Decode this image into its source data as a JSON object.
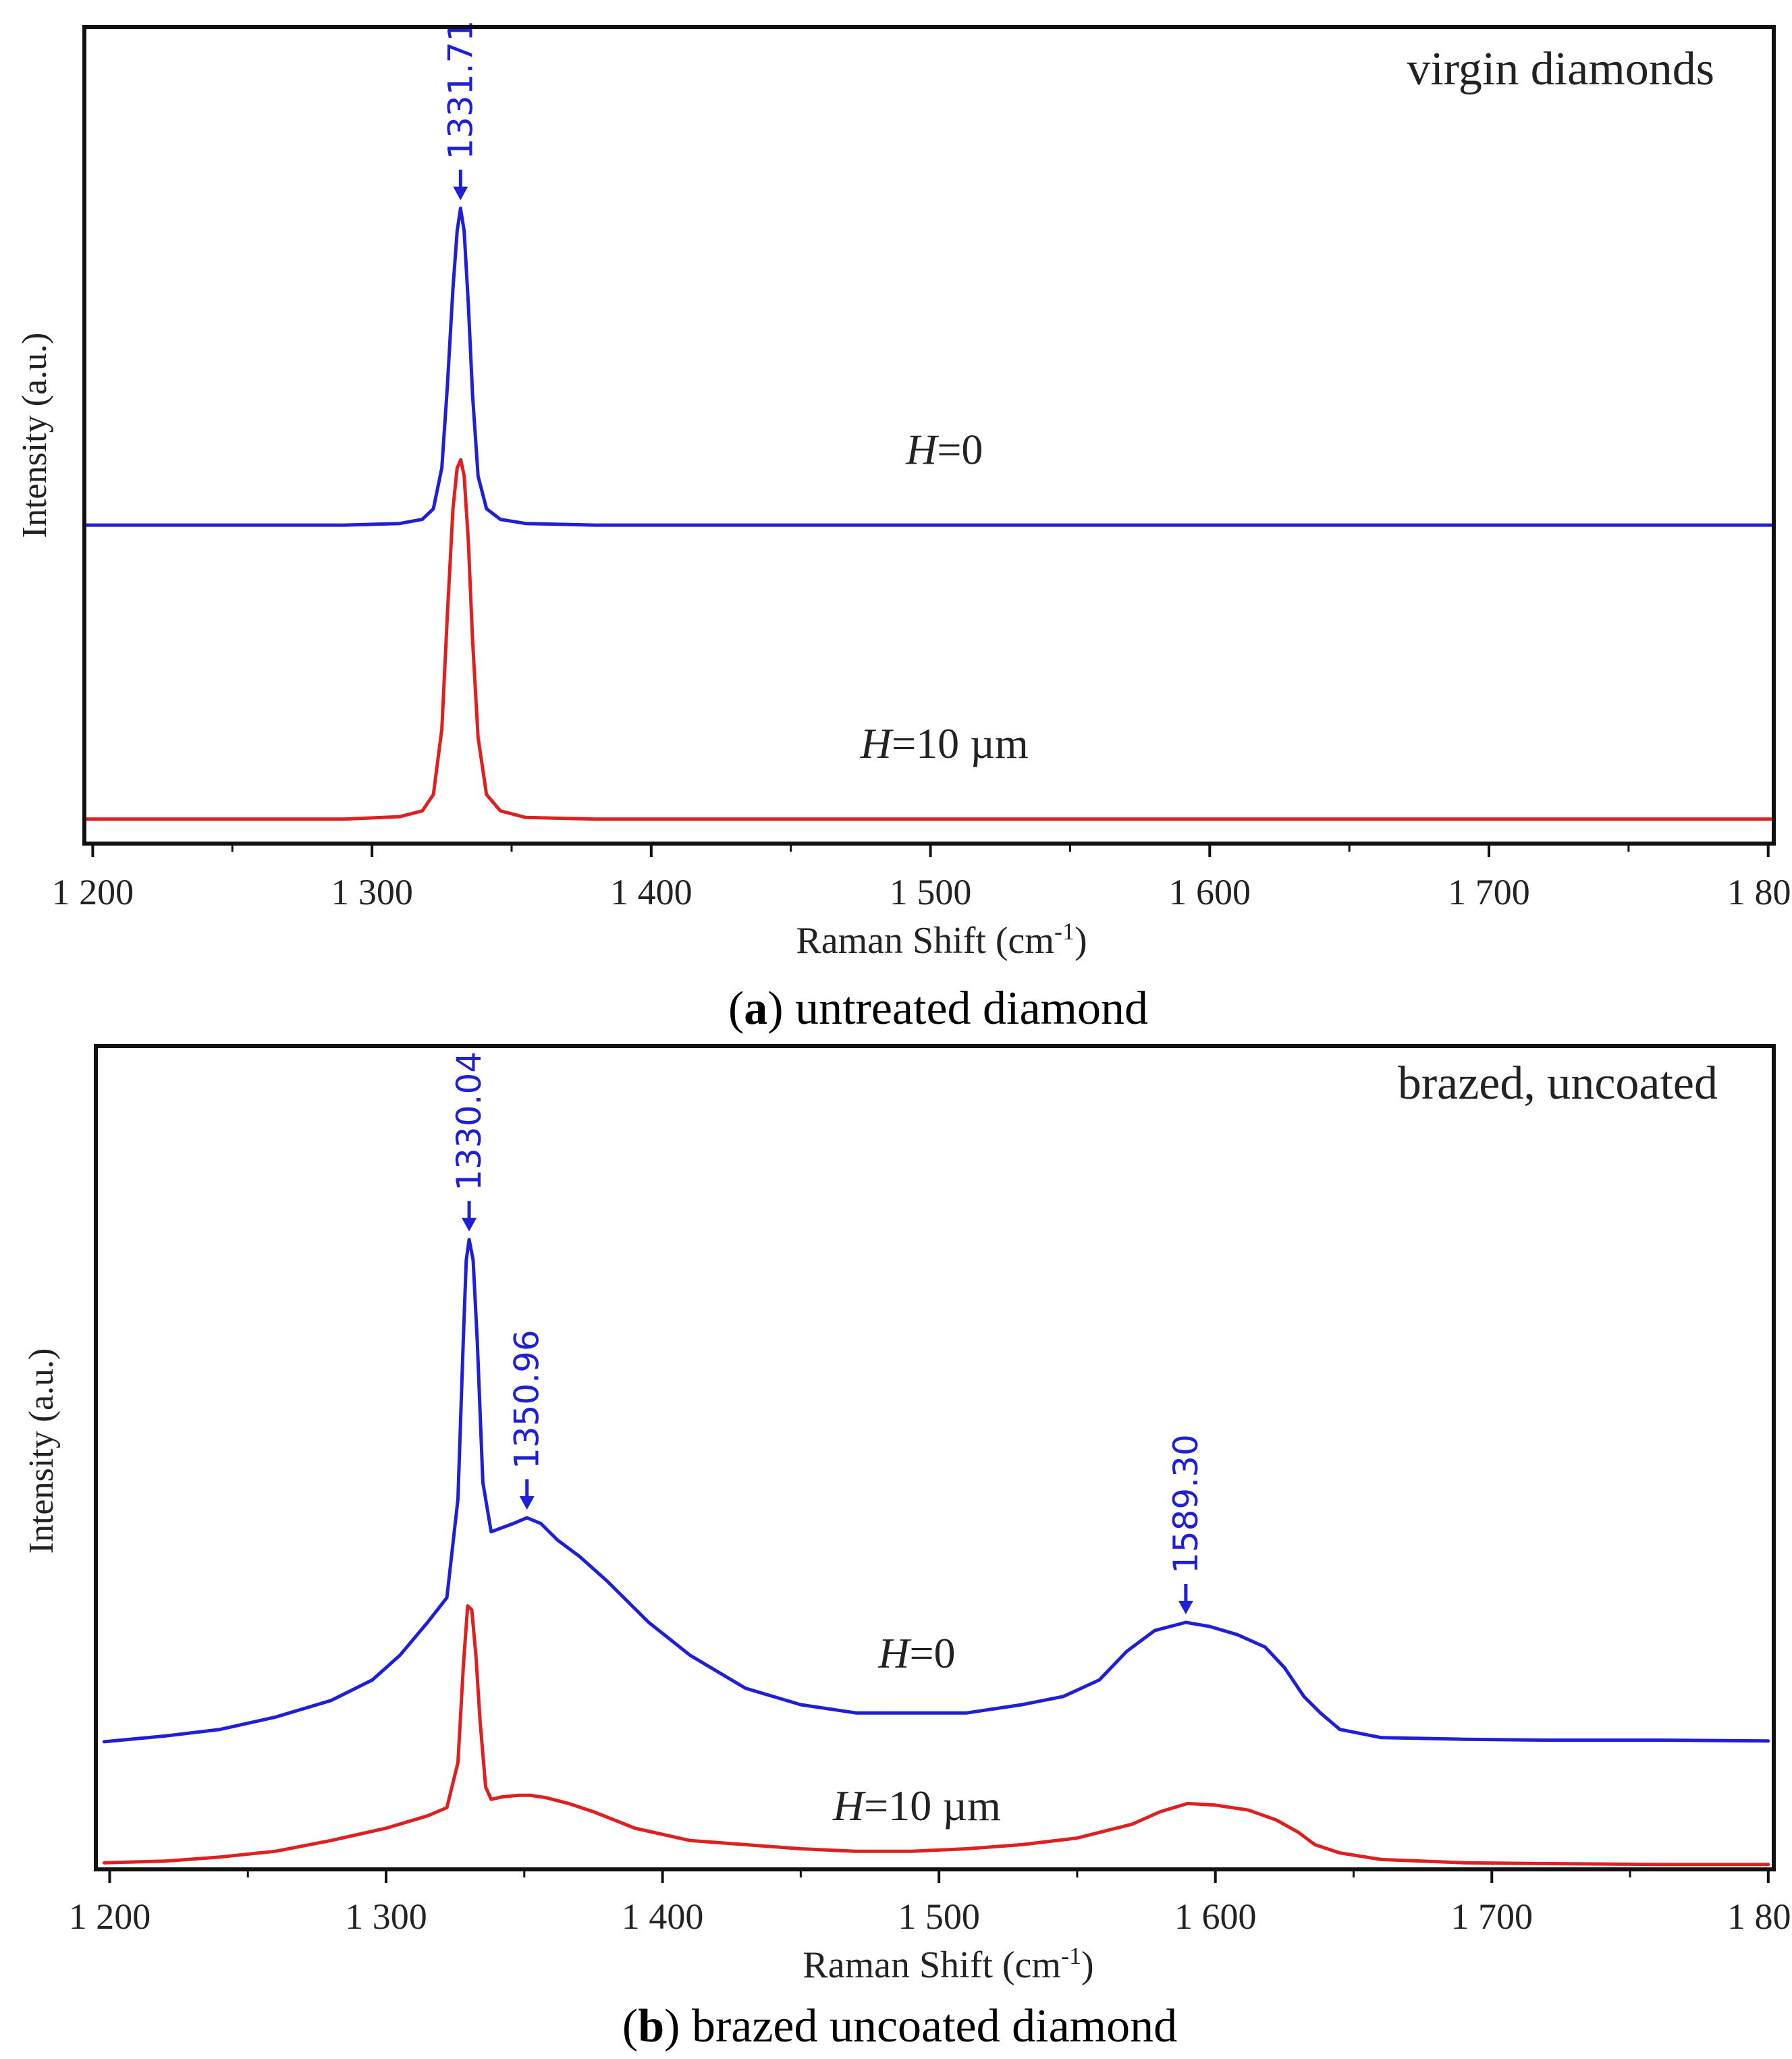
{
  "panels": [
    {
      "id": "a",
      "caption_letter": "a",
      "caption_text": "untreated diamond",
      "chart_data": {
        "type": "line",
        "title": "virgin diamonds",
        "xlabel": "Raman Shift (cm-1)",
        "xlabel_main": "Raman Shift (cm",
        "xlabel_sup": "-1",
        "xlabel_close": ")",
        "ylabel": "Intensity (a.u.)",
        "xlim": [
          1197,
          1802
        ],
        "ylim": [
          0,
          1
        ],
        "grid": false,
        "x_ticks": [
          1200,
          1300,
          1400,
          1500,
          1600,
          1700,
          1800
        ],
        "x_tick_labels": [
          "1 200",
          "1 300",
          "1 400",
          "1 500",
          "1 600",
          "1 700",
          "1 800"
        ],
        "series": [
          {
            "name": "H=0",
            "label_italic": "H",
            "label_rest": "=0",
            "label_x": 1505,
            "label_y": 0.465,
            "color": "#1f1fd6",
            "x": [
              1197,
              1290,
              1310,
              1318,
              1322,
              1325,
              1327,
              1329,
              1330.5,
              1331.71,
              1333,
              1334.5,
              1336,
              1338,
              1341,
              1346,
              1355,
              1380,
              1802
            ],
            "y": [
              0.39,
              0.39,
              0.392,
              0.397,
              0.41,
              0.46,
              0.56,
              0.68,
              0.75,
              0.778,
              0.75,
              0.66,
              0.55,
              0.45,
              0.41,
              0.397,
              0.392,
              0.39,
              0.39
            ]
          },
          {
            "name": "H=10 µm",
            "label_italic": "H",
            "label_rest": "=10 µm",
            "label_x": 1505,
            "label_y": 0.105,
            "color": "#e02020",
            "x": [
              1197,
              1290,
              1310,
              1318,
              1322,
              1325,
              1327,
              1329,
              1330.5,
              1331.8,
              1333,
              1334.5,
              1336,
              1338,
              1341,
              1346,
              1355,
              1380,
              1802
            ],
            "y": [
              0.03,
              0.03,
              0.033,
              0.04,
              0.06,
              0.14,
              0.28,
              0.41,
              0.46,
              0.47,
              0.45,
              0.37,
              0.25,
              0.13,
              0.06,
              0.04,
              0.032,
              0.03,
              0.03
            ]
          }
        ],
        "annotations": [
          {
            "text": "1331.71",
            "x": 1331.71,
            "y": 0.778,
            "color": "#1f1fd6"
          }
        ]
      }
    },
    {
      "id": "b",
      "caption_letter": "b",
      "caption_text": "brazed uncoated diamond",
      "chart_data": {
        "type": "line",
        "title": "brazed, uncoated",
        "xlabel": "Raman Shift (cm-1)",
        "xlabel_main": "Raman Shift (cm",
        "xlabel_sup": "-1",
        "xlabel_close": ")",
        "ylabel": "Intensity (a.u.)",
        "xlim": [
          1195,
          1802
        ],
        "ylim": [
          0,
          1
        ],
        "grid": false,
        "x_ticks": [
          1200,
          1300,
          1400,
          1500,
          1600,
          1700,
          1800
        ],
        "x_tick_labels": [
          "1 200",
          "1 300",
          "1 400",
          "1 500",
          "1 600",
          "1 700",
          "1 800"
        ],
        "series": [
          {
            "name": "H=0",
            "label_italic": "H",
            "label_rest": "=0",
            "label_x": 1492,
            "label_y": 0.245,
            "color": "#1f1fd6",
            "x": [
              1198,
              1220,
              1240,
              1260,
              1280,
              1295,
              1305,
              1315,
              1322,
              1326,
              1328,
              1329,
              1330.04,
              1331.5,
              1333,
              1335,
              1338,
              1342,
              1346,
              1350.96,
              1356,
              1362,
              1370,
              1380,
              1395,
              1410,
              1430,
              1450,
              1470,
              1490,
              1510,
              1530,
              1545,
              1558,
              1568,
              1578,
              1589.3,
              1598,
              1608,
              1618,
              1625,
              1632,
              1638,
              1645,
              1660,
              1690,
              1720,
              1760,
              1800
            ],
            "y": [
              0.155,
              0.162,
              0.17,
              0.185,
              0.205,
              0.23,
              0.26,
              0.3,
              0.33,
              0.45,
              0.65,
              0.74,
              0.765,
              0.74,
              0.64,
              0.47,
              0.41,
              0.415,
              0.42,
              0.427,
              0.42,
              0.4,
              0.38,
              0.35,
              0.3,
              0.26,
              0.22,
              0.2,
              0.19,
              0.19,
              0.19,
              0.2,
              0.21,
              0.23,
              0.265,
              0.29,
              0.3,
              0.295,
              0.285,
              0.27,
              0.245,
              0.21,
              0.19,
              0.17,
              0.16,
              0.158,
              0.157,
              0.157,
              0.156
            ]
          },
          {
            "name": "H=10 µm",
            "label_italic": "H",
            "label_rest": "=10 µm",
            "label_x": 1492,
            "label_y": 0.06,
            "color": "#e02020",
            "x": [
              1198,
              1220,
              1240,
              1260,
              1280,
              1300,
              1315,
              1322,
              1326,
              1328,
              1329.5,
              1331,
              1332.5,
              1334,
              1336,
              1338,
              1342,
              1348,
              1352,
              1358,
              1366,
              1375,
              1390,
              1410,
              1430,
              1450,
              1470,
              1490,
              1510,
              1530,
              1550,
              1570,
              1580,
              1590,
              1600,
              1612,
              1622,
              1630,
              1636,
              1645,
              1660,
              1690,
              1720,
              1760,
              1800
            ],
            "y": [
              0.008,
              0.01,
              0.015,
              0.022,
              0.035,
              0.05,
              0.065,
              0.075,
              0.13,
              0.25,
              0.32,
              0.315,
              0.26,
              0.18,
              0.1,
              0.085,
              0.088,
              0.09,
              0.09,
              0.087,
              0.08,
              0.07,
              0.05,
              0.035,
              0.03,
              0.025,
              0.022,
              0.022,
              0.025,
              0.03,
              0.038,
              0.055,
              0.07,
              0.08,
              0.078,
              0.072,
              0.06,
              0.045,
              0.03,
              0.02,
              0.012,
              0.008,
              0.007,
              0.006,
              0.006
            ]
          }
        ],
        "annotations": [
          {
            "text": "1330.04",
            "x": 1330.04,
            "y": 0.765,
            "color": "#1f1fd6"
          },
          {
            "text": "1350.96",
            "x": 1350.96,
            "y": 0.427,
            "color": "#1f1fd6"
          },
          {
            "text": "1589.30",
            "x": 1589.3,
            "y": 0.3,
            "color": "#1f1fd6"
          }
        ]
      }
    }
  ]
}
